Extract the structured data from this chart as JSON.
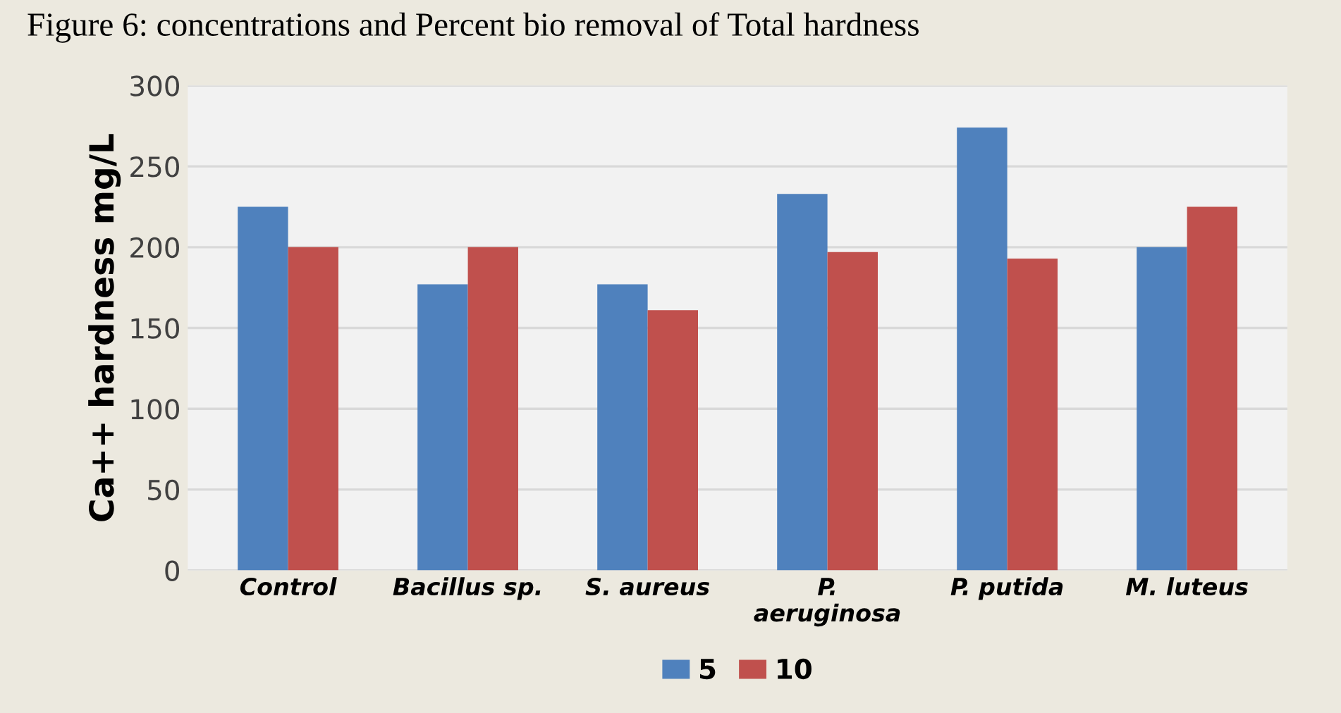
{
  "chart_data": {
    "type": "bar",
    "title": "Figure 6: concentrations and Percent bio removal of Total hardness",
    "ylabel": "Ca++ hardness mg/L",
    "categories": [
      "Control",
      "Bacillus sp.",
      "S. aureus",
      "P.\naeruginosa",
      "P. putida",
      "M. luteus"
    ],
    "series": [
      {
        "name": "5",
        "color": "#4f81bd",
        "values": [
          225,
          177,
          177,
          233,
          274,
          200
        ]
      },
      {
        "name": "10",
        "color": "#c0504d",
        "values": [
          200,
          200,
          161,
          197,
          193,
          225
        ]
      }
    ],
    "ylim": [
      0,
      300
    ],
    "yticks": [
      0,
      50,
      100,
      150,
      200,
      250,
      300
    ],
    "grid": "y",
    "legend": "bottom"
  }
}
